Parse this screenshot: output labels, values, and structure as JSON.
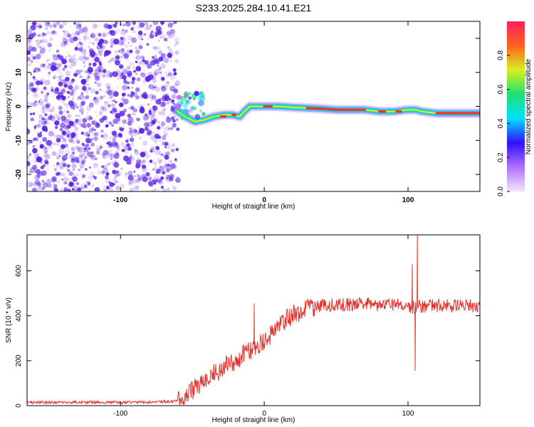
{
  "page_title": "S233.2025.284.10.41.E21",
  "colors": {
    "background": "#ffffff",
    "snr_line": "#e8302a",
    "noise_speckle": "#5a1ee6",
    "colorbar_stops": [
      "#f2e6fa",
      "#b070ff",
      "#3010ff",
      "#00e0ff",
      "#20e070",
      "#d8f020",
      "#ff6020",
      "#ff2060"
    ]
  },
  "chart_data": [
    {
      "type": "heatmap",
      "title": "S233.2025.284.10.41.E21",
      "xlabel": "Height of straight line (km)",
      "ylabel": "Frequency (Hz)",
      "xlim": [
        -165,
        150
      ],
      "ylim": [
        -25,
        25
      ],
      "x_ticks": [
        -100,
        0,
        100
      ],
      "y_ticks": [
        -20,
        -10,
        0,
        10,
        20
      ],
      "grid": false,
      "noise_region_x": [
        -165,
        -63
      ],
      "signal_track": {
        "x": [
          -62,
          -55,
          -48,
          -42,
          -35,
          -28,
          -22,
          -17,
          -14,
          -10,
          -5,
          0,
          5,
          10,
          20,
          30,
          40,
          50,
          60,
          70,
          80,
          90,
          100,
          105,
          110,
          120,
          130,
          140,
          150
        ],
        "frequency": [
          -1,
          -3,
          -4.5,
          -4,
          -3,
          -2.5,
          -2.5,
          -3,
          -1.5,
          0,
          0,
          0,
          0,
          0,
          -0.3,
          -0.5,
          -0.7,
          -1,
          -1,
          -1,
          -1.5,
          -1.5,
          -1,
          -1,
          -1.5,
          -2,
          -2,
          -2,
          -2
        ]
      },
      "colorbar": {
        "label": "Normalized spectral amplitude",
        "range": [
          0,
          1
        ],
        "ticks": [
          0.0,
          0.2,
          0.4,
          0.6,
          0.8
        ]
      }
    },
    {
      "type": "line",
      "xlabel": "Height of straight line (km)",
      "ylabel": "SNR (10 * v/v)",
      "xlim": [
        -165,
        150
      ],
      "ylim": [
        0,
        760
      ],
      "x_ticks": [
        -100,
        0,
        100
      ],
      "y_ticks": [
        0,
        200,
        400,
        600
      ],
      "grid": false,
      "series": [
        {
          "x": [
            -165,
            -100,
            -80,
            -65,
            -60,
            -55,
            -50,
            -45,
            -40,
            -35,
            -30,
            -25,
            -20,
            -15,
            -10,
            -5,
            0,
            5,
            10,
            15,
            20,
            25,
            30,
            35,
            40,
            50,
            60,
            70,
            80,
            90,
            100,
            103,
            105,
            107,
            110,
            120,
            130,
            140,
            150
          ],
          "y": [
            15,
            15,
            16,
            18,
            25,
            45,
            70,
            95,
            120,
            140,
            160,
            185,
            200,
            225,
            245,
            265,
            290,
            320,
            355,
            385,
            405,
            420,
            435,
            442,
            445,
            448,
            450,
            452,
            450,
            448,
            445,
            440,
            440,
            440,
            442,
            445,
            445,
            445,
            445
          ],
          "spikes": [
            {
              "x": -7,
              "y": 455
            },
            {
              "x": 103,
              "y": 630
            },
            {
              "x": 105,
              "y": 155
            },
            {
              "x": 106.5,
              "y": 760
            }
          ]
        }
      ]
    }
  ]
}
